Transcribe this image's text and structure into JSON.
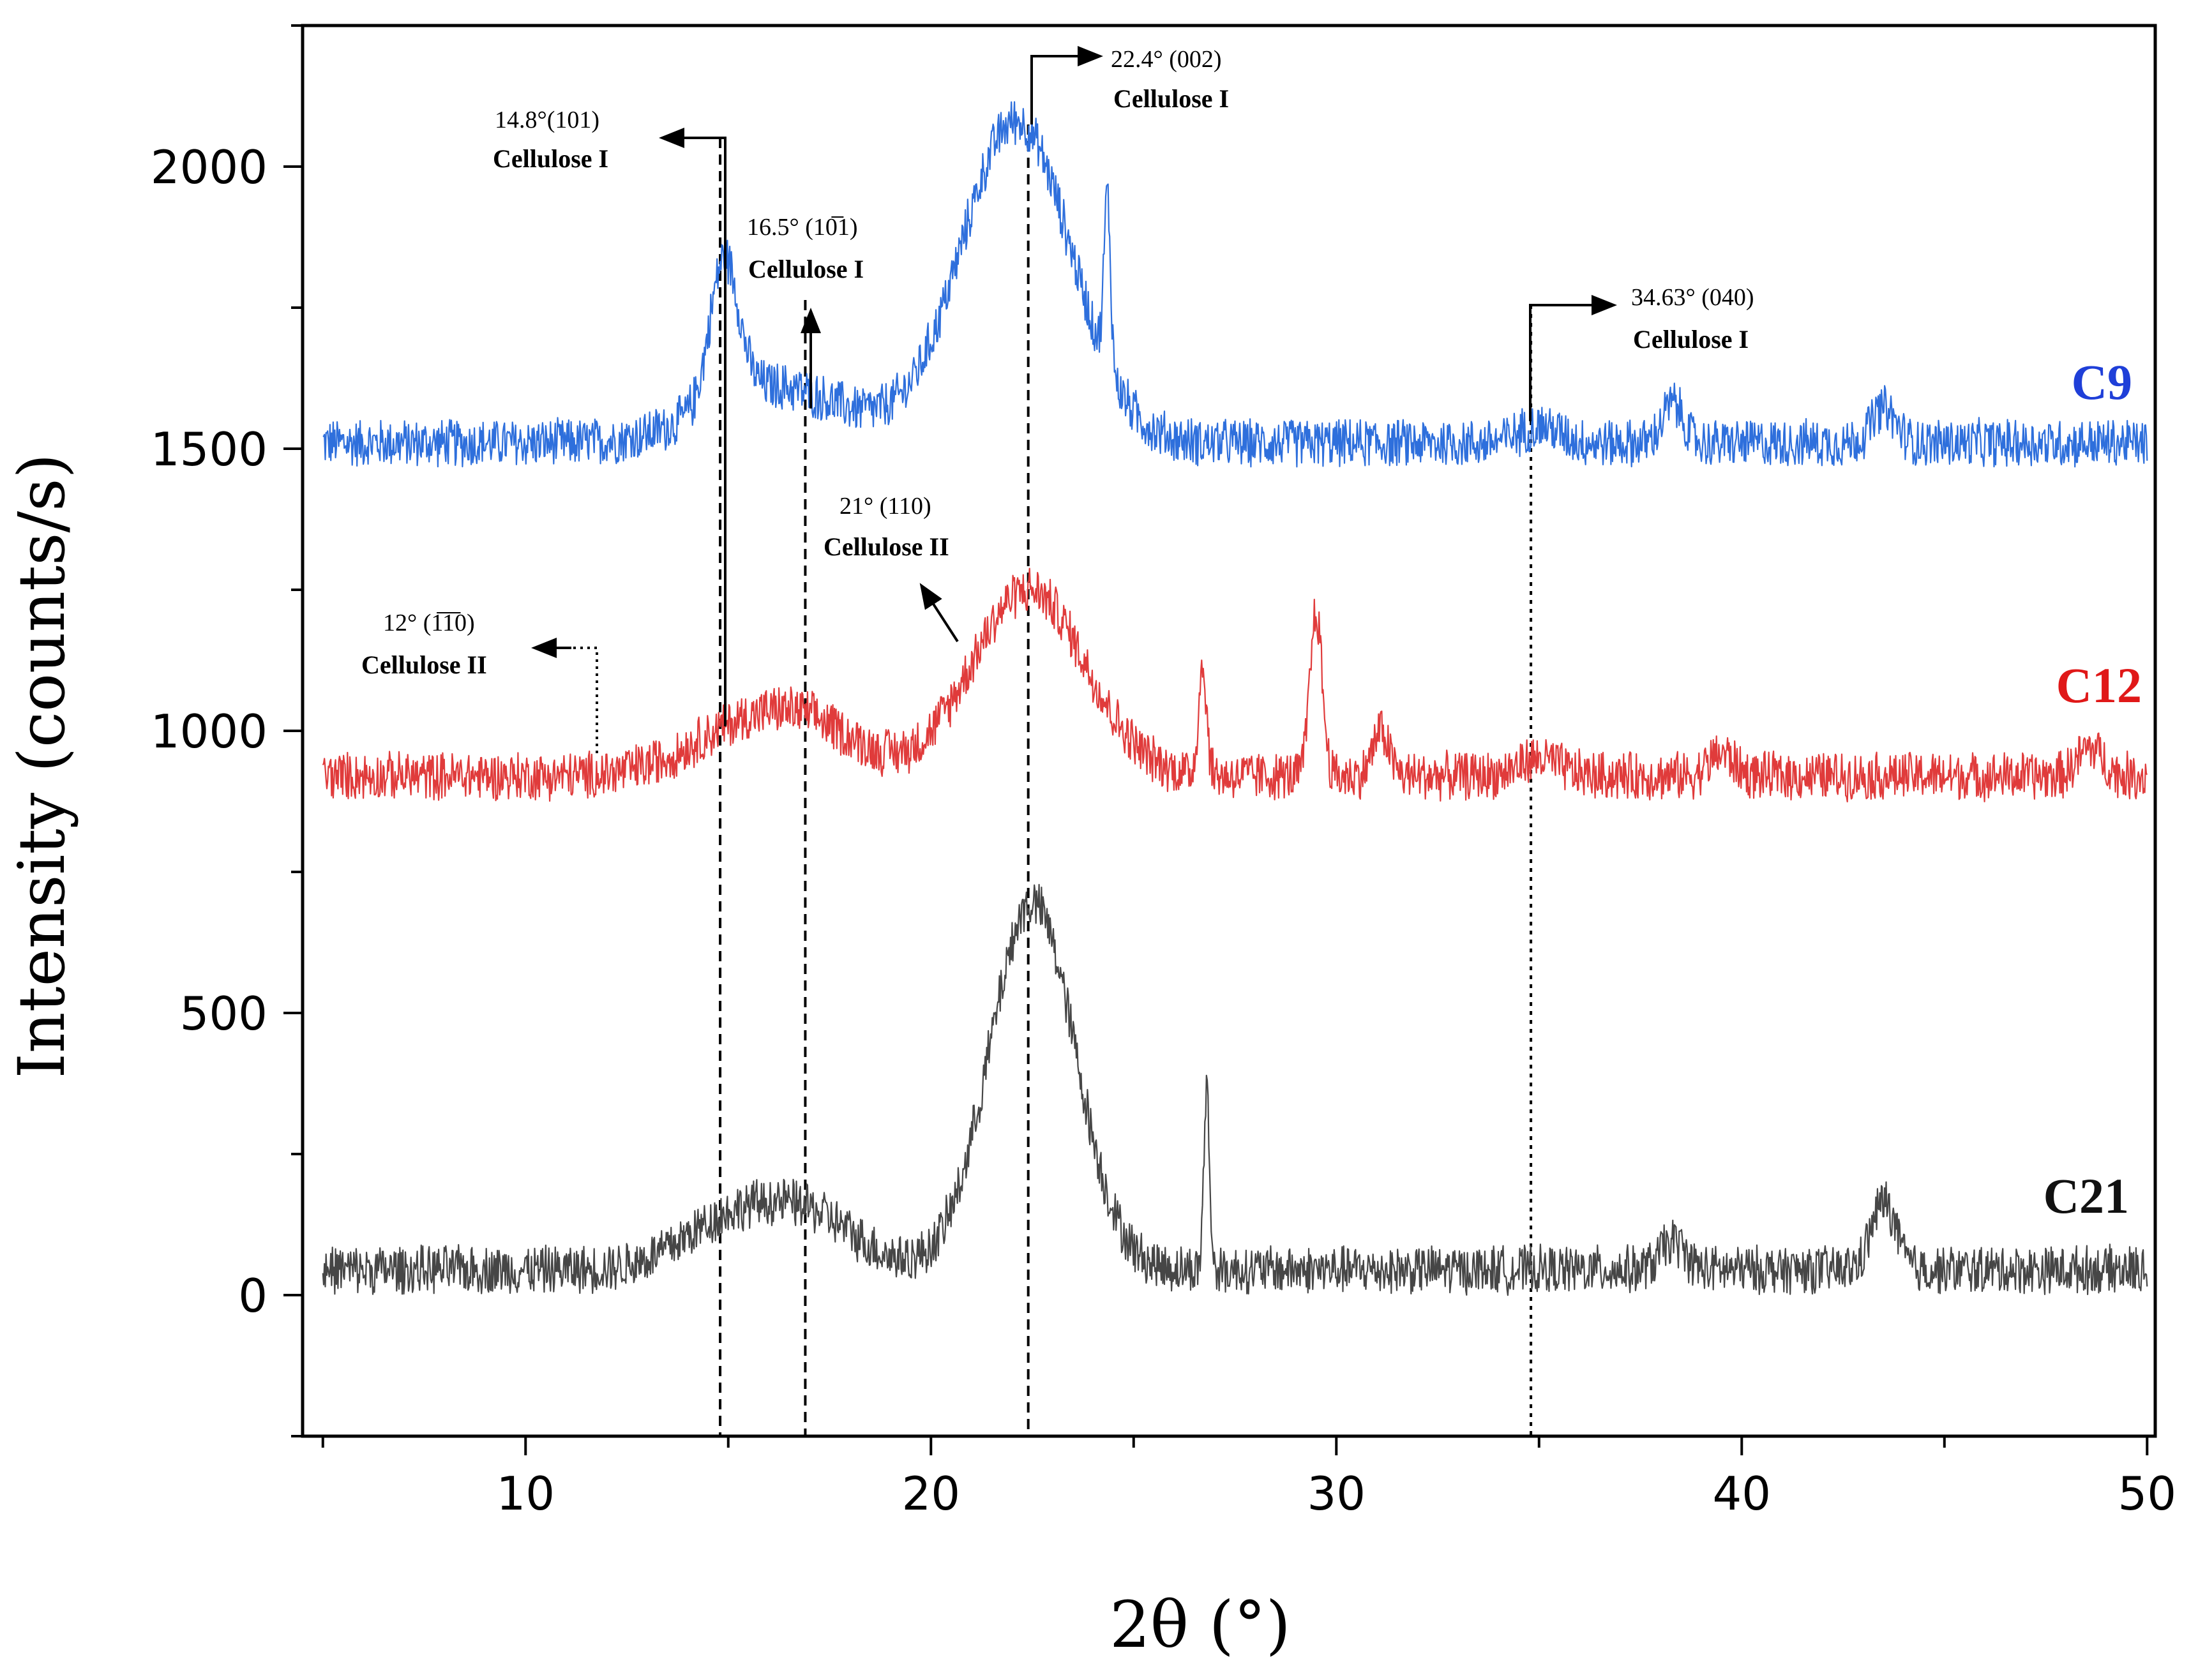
{
  "chart_data": {
    "type": "line",
    "xlabel": "2θ (°)",
    "ylabel": "Intensity (counts/s)",
    "xlim": [
      4.5,
      50.2
    ],
    "ylim": [
      -250,
      2250
    ],
    "x_ticks": [
      10,
      20,
      30,
      40,
      50
    ],
    "x_tick_labels": [
      "10",
      "20",
      "30",
      "40",
      "50"
    ],
    "y_ticks": [
      0,
      500,
      1000,
      1500,
      2000
    ],
    "y_tick_labels": [
      "0",
      "500",
      "1000",
      "1500",
      "2000"
    ],
    "grid": false,
    "series": [
      {
        "name": "C9",
        "color": "#2e6fdc",
        "baseline": 1510,
        "noise": 40,
        "peaks": [
          [
            14.9,
            250,
            0.35
          ],
          [
            15.5,
            50,
            1.4
          ],
          [
            16.8,
            60,
            1.8
          ],
          [
            22.1,
            570,
            1.35
          ],
          [
            24.35,
            300,
            0.08
          ],
          [
            35.0,
            30,
            0.5
          ],
          [
            38.3,
            70,
            0.25
          ],
          [
            43.5,
            60,
            0.3
          ]
        ]
      },
      {
        "name": "C12",
        "color": "#e03b3b",
        "baseline": 920,
        "noise": 40,
        "peaks": [
          [
            15.0,
            60,
            1.3
          ],
          [
            16.9,
            90,
            1.3
          ],
          [
            22.4,
            330,
            1.4
          ],
          [
            26.7,
            190,
            0.1
          ],
          [
            29.5,
            290,
            0.15
          ],
          [
            31.1,
            80,
            0.2
          ],
          [
            35.0,
            30,
            0.5
          ],
          [
            39.5,
            40,
            0.3
          ],
          [
            48.6,
            50,
            0.3
          ]
        ]
      },
      {
        "name": "C21",
        "color": "#464646",
        "baseline": 45,
        "noise": 40,
        "peaks": [
          [
            15.0,
            80,
            1.2
          ],
          [
            17.0,
            90,
            1.2
          ],
          [
            22.5,
            650,
            1.05
          ],
          [
            26.8,
            320,
            0.07
          ],
          [
            38.3,
            50,
            0.3
          ],
          [
            43.5,
            120,
            0.3
          ]
        ]
      }
    ],
    "annotations": [
      {
        "angle": "14.8°(101)",
        "phase": "Cellulose I"
      },
      {
        "angle": "16.5° (10̅1)",
        "phase": "Cellulose I"
      },
      {
        "angle": "22.4° (002)",
        "phase": "Cellulose I"
      },
      {
        "angle": "34.63° (040)",
        "phase": "Cellulose I"
      },
      {
        "angle": "21° (110)",
        "phase": "Cellulose II"
      },
      {
        "angle": "12° (1̅1̅0)",
        "phase": "Cellulose II"
      }
    ],
    "reference_lines_x": [
      14.8,
      16.9,
      22.4,
      34.8
    ]
  }
}
